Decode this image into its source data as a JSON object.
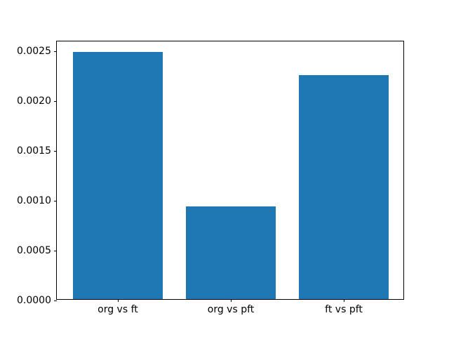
{
  "chart_data": {
    "type": "bar",
    "title": "",
    "xlabel": "",
    "ylabel": "",
    "categories": [
      "org vs ft",
      "org vs pft",
      "ft vs pft"
    ],
    "values": [
      0.00248,
      0.00093,
      0.00225
    ],
    "bar_color": "#1f77b4",
    "bar_width_data_units": 0.8,
    "xlim": [
      -0.54,
      2.54
    ],
    "ylim": [
      0,
      0.0026
    ],
    "ytick_labels": [
      "0.0000",
      "0.0005",
      "0.0010",
      "0.0015",
      "0.0020",
      "0.0025"
    ],
    "yticks": [
      0.0,
      0.0005,
      0.001,
      0.0015,
      0.002,
      0.0025
    ],
    "grid": false,
    "legend": null,
    "spine_color": "#000000",
    "background_color": "#ffffff"
  }
}
